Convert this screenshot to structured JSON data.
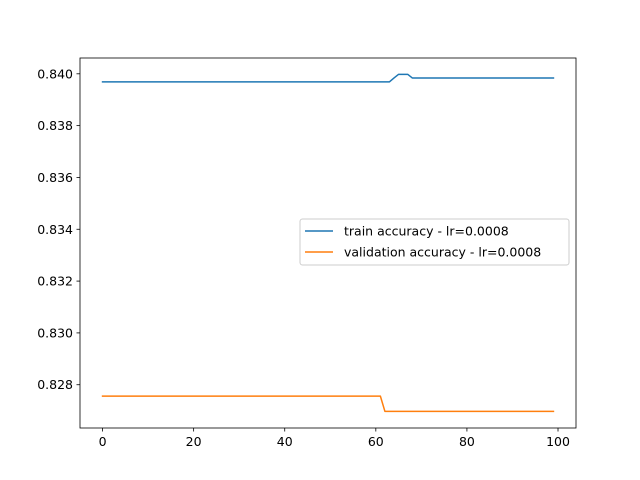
{
  "chart_data": {
    "type": "line",
    "title": "",
    "xlabel": "",
    "ylabel": "",
    "xlim": [
      -4.95,
      103.95
    ],
    "ylim": [
      0.82633,
      0.84061
    ],
    "xticks": [
      0,
      20,
      40,
      60,
      80,
      100
    ],
    "xtick_labels": [
      "0",
      "20",
      "40",
      "60",
      "80",
      "100"
    ],
    "yticks": [
      0.828,
      0.83,
      0.832,
      0.834,
      0.836,
      0.838,
      0.84
    ],
    "ytick_labels": [
      "0.828",
      "0.830",
      "0.832",
      "0.834",
      "0.836",
      "0.838",
      "0.840"
    ],
    "grid": false,
    "legend_position": "center-right",
    "series": [
      {
        "name": "train accuracy - lr=0.0008",
        "color": "#1f77b4",
        "x": [
          0,
          62,
          63,
          64,
          65,
          66,
          67,
          68,
          99
        ],
        "y": [
          0.83969,
          0.83969,
          0.83969,
          0.83984,
          0.83998,
          0.83998,
          0.83998,
          0.83984,
          0.83984
        ]
      },
      {
        "name": "validation accuracy - lr=0.0008",
        "color": "#ff7f0e",
        "x": [
          0,
          61,
          62,
          99
        ],
        "y": [
          0.82756,
          0.82756,
          0.82697,
          0.82697
        ]
      }
    ]
  }
}
